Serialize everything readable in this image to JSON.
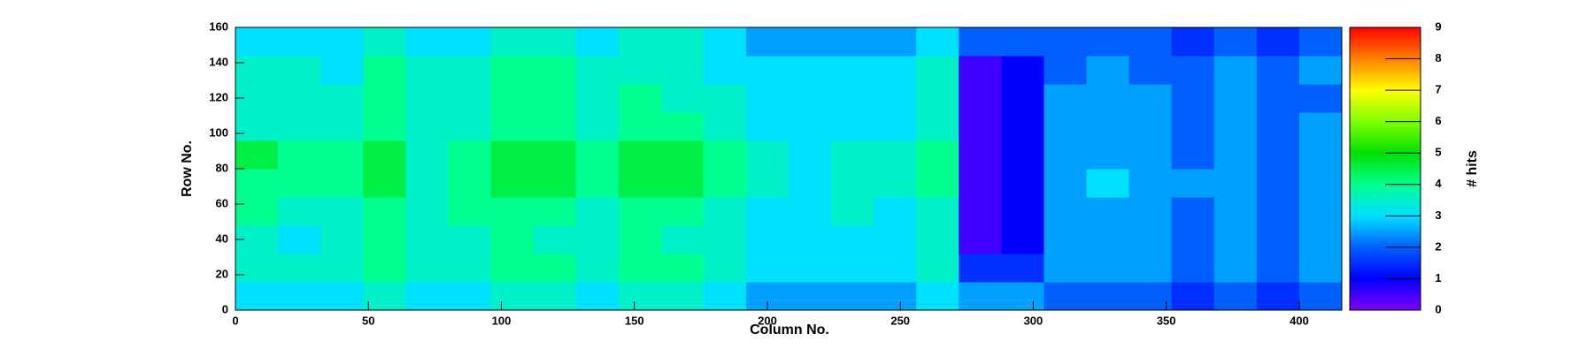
{
  "chart_data": {
    "type": "heatmap",
    "x_label": "Column No.",
    "y_label": "Row No.",
    "z_label": "# hits",
    "xbins": [
      0,
      16,
      32,
      48,
      64,
      80,
      96,
      112,
      128,
      144,
      160,
      176,
      192,
      208,
      224,
      240,
      256,
      272,
      288,
      304,
      320,
      336,
      352,
      368,
      384,
      400,
      416
    ],
    "ybins": [
      0,
      16,
      32,
      48,
      64,
      80,
      96,
      112,
      128,
      144,
      160
    ],
    "xlim": [
      0,
      416
    ],
    "ylim": [
      0,
      160
    ],
    "zlim": [
      0,
      9
    ],
    "xticks": [
      0,
      50,
      100,
      150,
      200,
      250,
      300,
      350,
      400
    ],
    "yticks": [
      0,
      20,
      40,
      60,
      80,
      100,
      120,
      140,
      160
    ],
    "zticks": [
      0,
      1,
      2,
      3,
      4,
      5,
      6,
      7,
      8,
      9
    ],
    "colorscale": [
      "#7f00ff",
      "#0000ff",
      "#0060ff",
      "#00e0ff",
      "#00ff90",
      "#00e000",
      "#80ff00",
      "#ffff00",
      "#ff8000",
      "#ff0000"
    ],
    "values": [
      [
        3.0,
        3.0,
        3.0,
        3.5,
        3.0,
        3.0,
        3.5,
        3.5,
        3.0,
        3.5,
        3.5,
        3.0,
        2.5,
        2.5,
        2.5,
        2.5,
        3.0,
        2.5,
        2.5,
        2.0,
        2.0,
        2.0,
        1.5,
        2.0,
        1.5,
        2.0
      ],
      [
        3.5,
        3.5,
        3.5,
        4.0,
        3.5,
        3.5,
        4.0,
        4.0,
        3.5,
        4.0,
        4.0,
        3.5,
        3.0,
        3.0,
        3.0,
        3.0,
        3.5,
        1.5,
        1.5,
        2.5,
        2.5,
        2.5,
        2.0,
        2.5,
        2.0,
        2.5
      ],
      [
        3.5,
        3.0,
        3.5,
        4.0,
        3.5,
        3.5,
        4.0,
        3.5,
        3.5,
        4.0,
        3.5,
        3.5,
        3.0,
        3.0,
        3.0,
        3.0,
        3.5,
        0.5,
        1.0,
        2.5,
        2.5,
        2.5,
        2.0,
        2.5,
        2.0,
        2.5
      ],
      [
        4.0,
        3.5,
        3.5,
        4.0,
        3.5,
        4.0,
        4.0,
        4.0,
        3.5,
        4.0,
        4.0,
        3.5,
        3.0,
        3.0,
        3.5,
        3.0,
        3.5,
        0.5,
        1.0,
        2.5,
        2.5,
        2.5,
        2.0,
        2.5,
        2.0,
        2.5
      ],
      [
        4.0,
        4.0,
        4.0,
        4.5,
        3.5,
        4.0,
        4.5,
        4.5,
        4.0,
        4.5,
        4.5,
        4.0,
        3.5,
        3.0,
        3.5,
        3.5,
        4.0,
        0.5,
        1.0,
        2.5,
        3.0,
        2.5,
        2.5,
        2.5,
        2.0,
        2.5
      ],
      [
        4.5,
        4.0,
        4.0,
        4.5,
        3.5,
        4.0,
        4.5,
        4.5,
        4.0,
        4.5,
        4.5,
        4.0,
        3.5,
        3.0,
        3.5,
        3.5,
        4.0,
        0.5,
        1.0,
        2.5,
        2.5,
        2.5,
        2.0,
        2.5,
        2.0,
        2.5
      ],
      [
        3.5,
        3.5,
        3.5,
        4.0,
        3.5,
        3.5,
        4.0,
        4.0,
        3.5,
        4.0,
        4.0,
        3.5,
        3.0,
        3.0,
        3.0,
        3.0,
        3.5,
        0.5,
        1.0,
        2.5,
        2.5,
        2.5,
        2.0,
        2.5,
        2.0,
        2.5
      ],
      [
        3.5,
        3.5,
        3.5,
        4.0,
        3.5,
        3.5,
        4.0,
        4.0,
        3.5,
        4.0,
        3.5,
        3.5,
        3.0,
        3.0,
        3.0,
        3.0,
        3.5,
        0.5,
        1.0,
        2.5,
        2.5,
        2.5,
        2.0,
        2.5,
        2.0,
        2.0
      ],
      [
        3.5,
        3.5,
        3.0,
        4.0,
        3.5,
        3.5,
        4.0,
        4.0,
        3.5,
        3.5,
        3.5,
        3.0,
        3.0,
        3.0,
        3.0,
        3.0,
        3.5,
        0.5,
        1.0,
        2.0,
        2.5,
        2.0,
        2.0,
        2.5,
        2.0,
        2.5
      ],
      [
        3.0,
        3.0,
        3.0,
        3.5,
        3.0,
        3.0,
        3.5,
        3.5,
        3.0,
        3.5,
        3.5,
        3.0,
        2.5,
        2.5,
        2.5,
        2.5,
        3.0,
        2.0,
        2.0,
        2.0,
        2.0,
        2.0,
        1.5,
        2.0,
        1.5,
        2.0
      ]
    ]
  }
}
